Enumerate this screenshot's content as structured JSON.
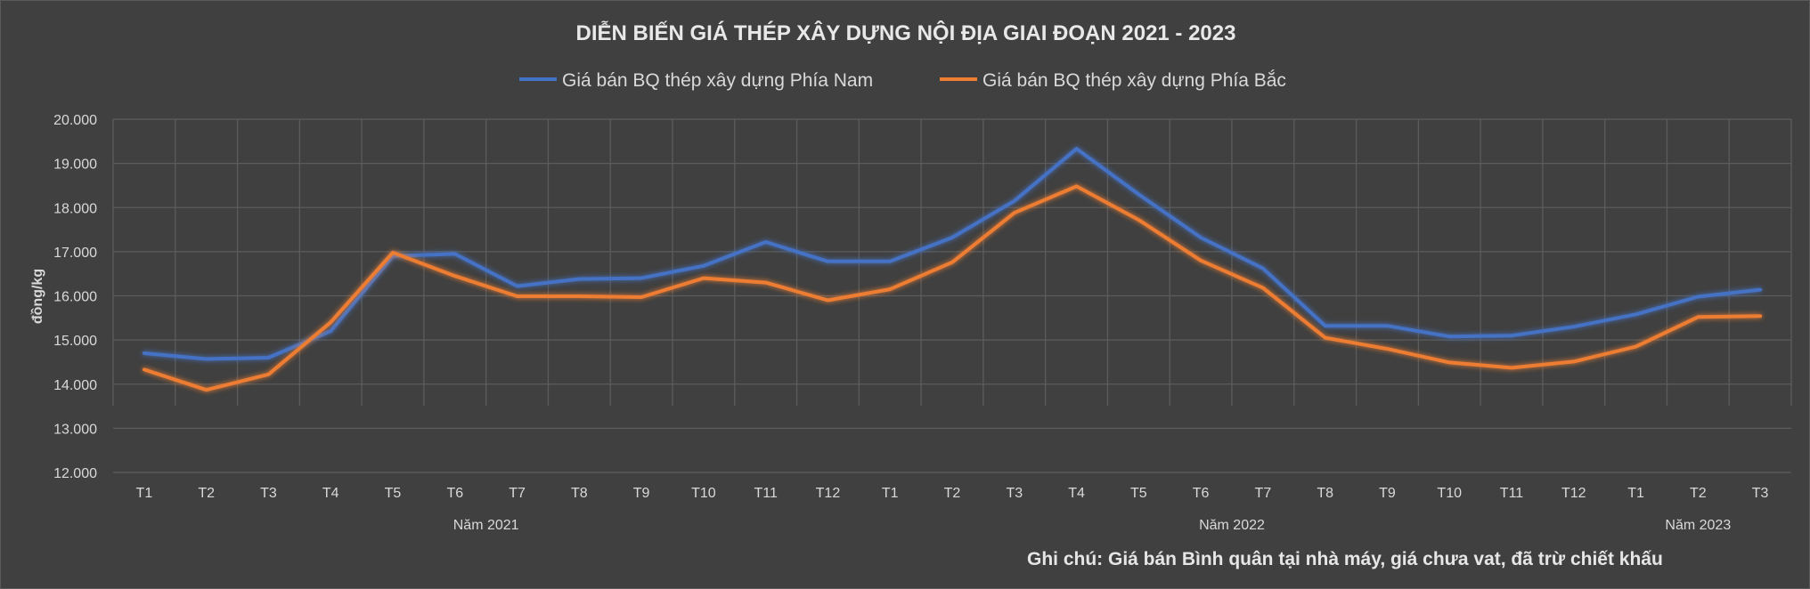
{
  "chart_data": {
    "type": "line",
    "title": "DIỄN BIẾN GIÁ THÉP XÂY DỰNG NỘI ĐỊA GIAI ĐOẠN 2021 - 2023",
    "ylabel": "đồng/kg",
    "ylim": [
      12000,
      20000
    ],
    "yticks": [
      "20.000",
      "19.000",
      "18.000",
      "17.000",
      "16.000",
      "15.000",
      "14.000",
      "13.000",
      "12.000"
    ],
    "categories": [
      "T1",
      "T2",
      "T3",
      "T4",
      "T5",
      "T6",
      "T7",
      "T8",
      "T9",
      "T10",
      "T11",
      "T12",
      "T1",
      "T2",
      "T3",
      "T4",
      "T5",
      "T6",
      "T7",
      "T8",
      "T9",
      "T10",
      "T11",
      "T12",
      "T1",
      "T2",
      "T3"
    ],
    "year_groups": [
      {
        "label": "Năm 2021",
        "start": 0,
        "end": 11
      },
      {
        "label": "Năm 2022",
        "start": 12,
        "end": 23
      },
      {
        "label": "Năm 2023",
        "start": 24,
        "end": 26
      }
    ],
    "series": [
      {
        "name": "Giá bán BQ thép xây dựng Phía Nam",
        "color": "#4472c4",
        "values": [
          14700,
          14570,
          14600,
          15200,
          16900,
          16950,
          16220,
          16380,
          16400,
          16680,
          17220,
          16780,
          16780,
          17320,
          18150,
          19330,
          18300,
          17320,
          16620,
          15320,
          15320,
          15080,
          15100,
          15300,
          15580,
          15980,
          16140
        ]
      },
      {
        "name": "Giá bán BQ thép xây dựng Phía Bắc",
        "color": "#ed7d31",
        "values": [
          14330,
          13870,
          14220,
          15400,
          16980,
          16450,
          15990,
          15990,
          15970,
          16400,
          16300,
          15900,
          16150,
          16760,
          17880,
          18480,
          17720,
          16800,
          16180,
          15050,
          14800,
          14490,
          14370,
          14510,
          14850,
          15520,
          15540
        ]
      }
    ],
    "legend_position": "top",
    "grid": true,
    "note": "Ghi chú: Giá bán Bình quân tại nhà máy, giá chưa vat, đã trừ chiết khấu"
  }
}
